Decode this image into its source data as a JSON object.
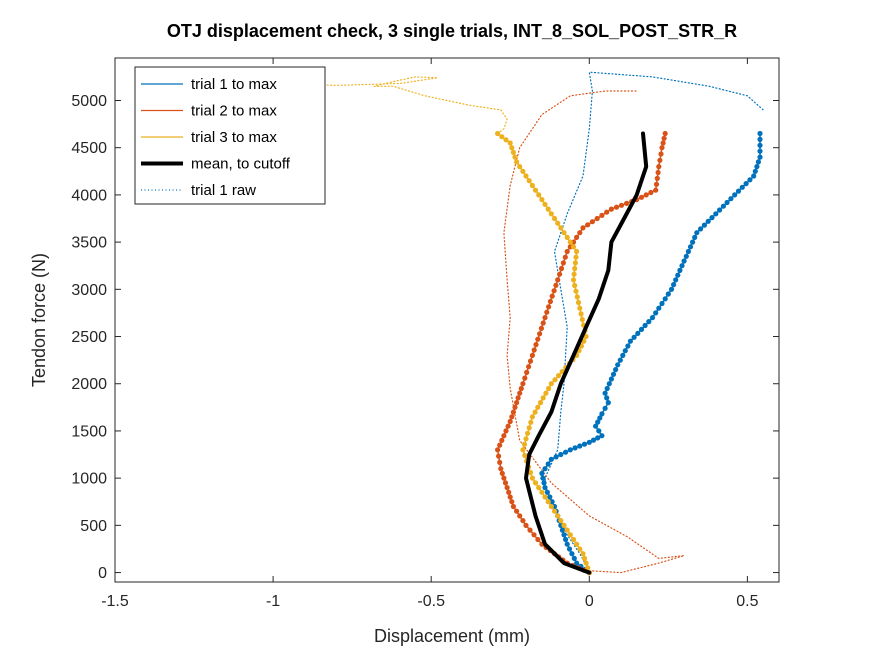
{
  "chart_data": {
    "type": "line",
    "title": "OTJ displacement check, 3 single trials, INT_8_SOL_POST_STR_R",
    "xlabel": "Displacement (mm)",
    "ylabel": "Tendon force (N)",
    "xlim": [
      -1.5,
      0.6
    ],
    "ylim": [
      -100,
      5450
    ],
    "xticks": [
      -1.5,
      -1,
      -0.5,
      0,
      0.5
    ],
    "xtick_labels": [
      "-1.5",
      "-1",
      "-0.5",
      "0",
      "0.5"
    ],
    "yticks": [
      0,
      500,
      1000,
      1500,
      2000,
      2500,
      3000,
      3500,
      4000,
      4500,
      5000
    ],
    "ytick_labels": [
      "0",
      "500",
      "1000",
      "1500",
      "2000",
      "2500",
      "3000",
      "3500",
      "4000",
      "4500",
      "5000"
    ],
    "grid": false,
    "legend_position": "top-left",
    "series": [
      {
        "name": "trial 1 to max",
        "color": "#0072BD",
        "style": "line-markers",
        "points": [
          [
            0.0,
            0
          ],
          [
            -0.04,
            100
          ],
          [
            -0.07,
            300
          ],
          [
            -0.09,
            500
          ],
          [
            -0.11,
            700
          ],
          [
            -0.14,
            900
          ],
          [
            -0.15,
            1050
          ],
          [
            -0.12,
            1200
          ],
          [
            -0.06,
            1300
          ],
          [
            0.0,
            1380
          ],
          [
            0.04,
            1450
          ],
          [
            0.02,
            1550
          ],
          [
            0.04,
            1680
          ],
          [
            0.06,
            1800
          ],
          [
            0.05,
            1900
          ],
          [
            0.07,
            2050
          ],
          [
            0.09,
            2200
          ],
          [
            0.13,
            2450
          ],
          [
            0.2,
            2700
          ],
          [
            0.26,
            3000
          ],
          [
            0.3,
            3300
          ],
          [
            0.34,
            3600
          ],
          [
            0.4,
            3800
          ],
          [
            0.46,
            4000
          ],
          [
            0.52,
            4200
          ],
          [
            0.54,
            4400
          ],
          [
            0.54,
            4650
          ]
        ]
      },
      {
        "name": "trial 2 to max",
        "color": "#D95319",
        "style": "line-markers",
        "points": [
          [
            0.0,
            0
          ],
          [
            -0.07,
            100
          ],
          [
            -0.15,
            300
          ],
          [
            -0.2,
            500
          ],
          [
            -0.24,
            700
          ],
          [
            -0.26,
            900
          ],
          [
            -0.28,
            1100
          ],
          [
            -0.29,
            1300
          ],
          [
            -0.27,
            1450
          ],
          [
            -0.25,
            1600
          ],
          [
            -0.23,
            1800
          ],
          [
            -0.21,
            2000
          ],
          [
            -0.18,
            2300
          ],
          [
            -0.14,
            2700
          ],
          [
            -0.1,
            3100
          ],
          [
            -0.07,
            3400
          ],
          [
            -0.02,
            3650
          ],
          [
            0.07,
            3850
          ],
          [
            0.15,
            3950
          ],
          [
            0.21,
            4050
          ],
          [
            0.22,
            4300
          ],
          [
            0.23,
            4500
          ],
          [
            0.24,
            4650
          ]
        ]
      },
      {
        "name": "trial 3 to max",
        "color": "#EDB120",
        "style": "line-markers",
        "points": [
          [
            0.0,
            0
          ],
          [
            -0.02,
            200
          ],
          [
            -0.06,
            400
          ],
          [
            -0.1,
            600
          ],
          [
            -0.14,
            800
          ],
          [
            -0.18,
            1000
          ],
          [
            -0.21,
            1300
          ],
          [
            -0.18,
            1650
          ],
          [
            -0.12,
            2000
          ],
          [
            -0.04,
            2300
          ],
          [
            -0.01,
            2500
          ],
          [
            -0.03,
            2800
          ],
          [
            -0.05,
            3100
          ],
          [
            -0.04,
            3400
          ],
          [
            -0.08,
            3600
          ],
          [
            -0.13,
            3850
          ],
          [
            -0.18,
            4100
          ],
          [
            -0.23,
            4350
          ],
          [
            -0.25,
            4550
          ],
          [
            -0.29,
            4650
          ]
        ]
      },
      {
        "name": "mean, to cutoff",
        "color": "#000000",
        "style": "thick-line",
        "points": [
          [
            0.0,
            0
          ],
          [
            -0.08,
            100
          ],
          [
            -0.14,
            300
          ],
          [
            -0.17,
            600
          ],
          [
            -0.2,
            1000
          ],
          [
            -0.19,
            1250
          ],
          [
            -0.16,
            1450
          ],
          [
            -0.12,
            1700
          ],
          [
            -0.09,
            2000
          ],
          [
            -0.05,
            2300
          ],
          [
            -0.01,
            2600
          ],
          [
            0.03,
            2900
          ],
          [
            0.06,
            3200
          ],
          [
            0.07,
            3500
          ],
          [
            0.11,
            3750
          ],
          [
            0.15,
            4000
          ],
          [
            0.18,
            4300
          ],
          [
            0.17,
            4650
          ]
        ]
      },
      {
        "name": "trial 1 raw",
        "color": "#0072BD",
        "style": "dotted",
        "points": [
          [
            0.0,
            20
          ],
          [
            -0.03,
            200
          ],
          [
            -0.07,
            400
          ],
          [
            -0.1,
            600
          ],
          [
            -0.13,
            800
          ],
          [
            -0.14,
            1000
          ],
          [
            -0.1,
            1300
          ],
          [
            -0.09,
            1700
          ],
          [
            -0.08,
            2000
          ],
          [
            -0.07,
            2600
          ],
          [
            -0.09,
            3000
          ],
          [
            -0.11,
            3400
          ],
          [
            -0.07,
            3800
          ],
          [
            -0.02,
            4200
          ],
          [
            0.0,
            4700
          ],
          [
            0.01,
            5100
          ],
          [
            0.0,
            5300
          ],
          [
            0.2,
            5250
          ],
          [
            0.38,
            5150
          ],
          [
            0.5,
            5050
          ],
          [
            0.55,
            4900
          ]
        ]
      },
      {
        "name": "",
        "color": "#D95319",
        "style": "dotted",
        "points": [
          [
            0.0,
            20
          ],
          [
            0.1,
            0
          ],
          [
            0.22,
            100
          ],
          [
            0.3,
            180
          ],
          [
            0.22,
            150
          ],
          [
            0.12,
            380
          ],
          [
            0.0,
            600
          ],
          [
            -0.12,
            950
          ],
          [
            -0.22,
            1400
          ],
          [
            -0.25,
            1950
          ],
          [
            -0.26,
            2300
          ],
          [
            -0.25,
            2700
          ],
          [
            -0.26,
            3100
          ],
          [
            -0.27,
            3600
          ],
          [
            -0.25,
            4100
          ],
          [
            -0.22,
            4500
          ],
          [
            -0.15,
            4850
          ],
          [
            -0.06,
            5050
          ],
          [
            0.05,
            5100
          ],
          [
            0.15,
            5100
          ]
        ]
      },
      {
        "name": "",
        "color": "#EDB120",
        "style": "dotted",
        "points": [
          [
            -0.29,
            4650
          ],
          [
            -0.27,
            4700
          ],
          [
            -0.26,
            4800
          ],
          [
            -0.28,
            4900
          ],
          [
            -0.38,
            4950
          ],
          [
            -0.52,
            5050
          ],
          [
            -0.62,
            5150
          ],
          [
            -0.68,
            5150
          ],
          [
            -0.62,
            5200
          ],
          [
            -0.55,
            5250
          ],
          [
            -0.48,
            5240
          ],
          [
            -0.6,
            5180
          ],
          [
            -0.8,
            5160
          ],
          [
            -1.0,
            5180
          ],
          [
            -1.15,
            5160
          ],
          [
            -1.3,
            5150
          ]
        ]
      }
    ]
  }
}
